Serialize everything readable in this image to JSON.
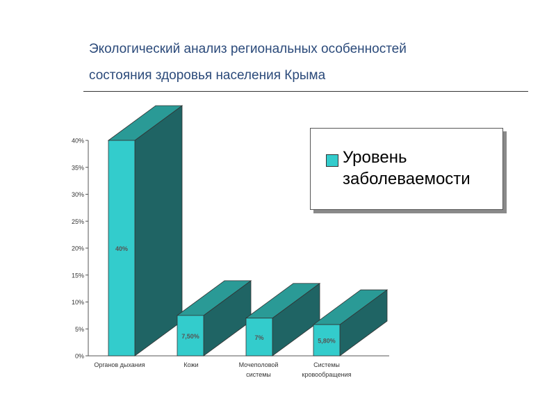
{
  "slide": {
    "title_line1": "Экологический анализ региональных особенностей",
    "title_line2": "состояния здоровья населения Крыма"
  },
  "legend": {
    "series_name": "Уровень заболеваемости",
    "swatch_color": "#33cccc"
  },
  "colors": {
    "bar_front": "#33cccc",
    "bar_side": "#1f6464",
    "bar_top": "#2a9a96",
    "title": "#2b4a7a"
  },
  "chart_data": {
    "type": "bar",
    "categories": [
      [
        "Органов дыхания"
      ],
      [
        "Кожи"
      ],
      [
        "Мочеполовой",
        "системы"
      ],
      [
        "Системы",
        "кровообращения"
      ]
    ],
    "series": [
      {
        "name": "Уровень заболеваемости",
        "values": [
          40,
          7.5,
          7,
          5.8
        ],
        "data_labels": [
          "40%",
          "7,50%",
          "7%",
          "5,80%"
        ]
      }
    ],
    "y_ticks": [
      "0%",
      "5%",
      "10%",
      "15%",
      "20%",
      "25%",
      "30%",
      "35%",
      "40%"
    ],
    "ylim": [
      0,
      40
    ],
    "grid": false,
    "legend_position": "top-right",
    "three_d": true
  }
}
